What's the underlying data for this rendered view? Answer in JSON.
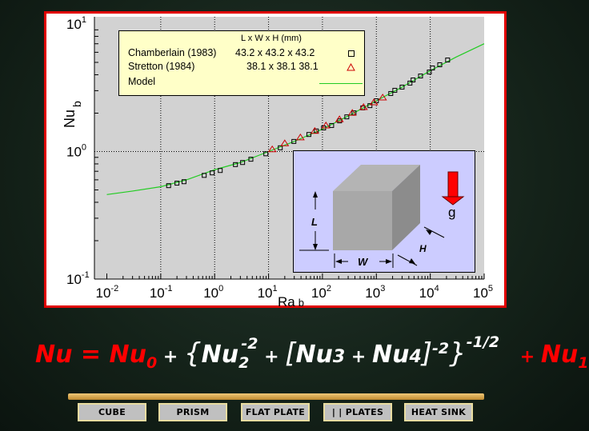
{
  "chart_data": {
    "type": "scatter",
    "xscale": "log",
    "yscale": "log",
    "xlim": [
      0.01,
      100000
    ],
    "ylim": [
      0.1,
      10
    ],
    "xlabel": "Ra",
    "xlabel_sub": "b",
    "ylabel": "Nu",
    "ylabel_sub": "b",
    "grid": true,
    "legend_placement": "top-left",
    "xticks": [
      {
        "base": "10",
        "exp": "-2"
      },
      {
        "base": "10",
        "exp": "-1"
      },
      {
        "base": "10",
        "exp": "0"
      },
      {
        "base": "10",
        "exp": "1"
      },
      {
        "base": "10",
        "exp": "2"
      },
      {
        "base": "10",
        "exp": "3"
      },
      {
        "base": "10",
        "exp": "4"
      },
      {
        "base": "10",
        "exp": "5"
      }
    ],
    "yticks": [
      {
        "base": "10",
        "exp": "1"
      },
      {
        "base": "10",
        "exp": "0"
      },
      {
        "base": "10",
        "exp": "-1"
      }
    ],
    "legend_header": "L x W x H (mm)",
    "series": [
      {
        "name": "Chamberlain (1983)",
        "dims": "43.2 x 43.2 x 43.2",
        "marker": "square",
        "color": "#000000",
        "x": [
          0.14,
          0.2,
          0.27,
          0.64,
          0.9,
          1.27,
          2.43,
          3.3,
          4.7,
          8.9,
          16.5,
          29.5,
          56,
          77,
          105,
          148,
          208,
          283,
          385,
          560,
          760,
          1000,
          1850,
          2200,
          3000,
          4200,
          4800,
          6600,
          9600,
          11000,
          15000,
          21000
        ],
        "y": [
          0.54,
          0.565,
          0.58,
          0.65,
          0.68,
          0.71,
          0.79,
          0.82,
          0.87,
          0.96,
          1.07,
          1.2,
          1.36,
          1.45,
          1.53,
          1.6,
          1.74,
          1.87,
          2.01,
          2.2,
          2.29,
          2.5,
          2.85,
          3.02,
          3.2,
          3.44,
          3.64,
          3.91,
          4.2,
          4.52,
          4.79,
          5.22
        ]
      },
      {
        "name": "Stretton (1984)",
        "dims": "38.1 x 38.1 38.1",
        "marker": "triangle",
        "color": "#cc0000",
        "x": [
          11.7,
          20,
          39,
          72,
          116,
          207,
          358,
          578,
          900,
          1310
        ],
        "y": [
          1.04,
          1.16,
          1.29,
          1.45,
          1.6,
          1.79,
          2.01,
          2.23,
          2.43,
          2.65
        ]
      },
      {
        "name": "Model",
        "marker": "line",
        "color": "#22cc22",
        "x": [
          0.01,
          0.03,
          0.1,
          0.3,
          1,
          3,
          10,
          30,
          100,
          300,
          1000,
          3000,
          10000,
          30000,
          100000
        ],
        "y": [
          0.46,
          0.49,
          0.53,
          0.6,
          0.72,
          0.82,
          1.0,
          1.2,
          1.5,
          1.9,
          2.5,
          3.2,
          4.3,
          5.5,
          7.0
        ]
      }
    ]
  },
  "inset": {
    "labels": {
      "length": "L",
      "width": "W",
      "height": "H",
      "gravity": "g"
    },
    "gravity_color": "#ff0000"
  },
  "equation": {
    "lhs": "Nu",
    "eq": " = ",
    "nu0": "Nu",
    "nu0_sub": "0",
    "plus": " + ",
    "nu2": "Nu",
    "nu2_sub": "2",
    "nu2_sup": "-2",
    "nu3": "Nu",
    "nu3_sub": "3",
    "nu4": "Nu",
    "nu4_sub": "4",
    "inner_exp": "-2",
    "outer_exp": "-1/2",
    "nu1": "Nu",
    "nu1_sub": "1",
    "open_brace": "{",
    "close_brace": "}",
    "open_bracket": "[",
    "close_bracket": "]"
  },
  "nav": {
    "buttons": [
      "CUBE",
      "PRISM",
      "FLAT PLATE",
      "| |  PLATES",
      "HEAT SINK"
    ]
  }
}
